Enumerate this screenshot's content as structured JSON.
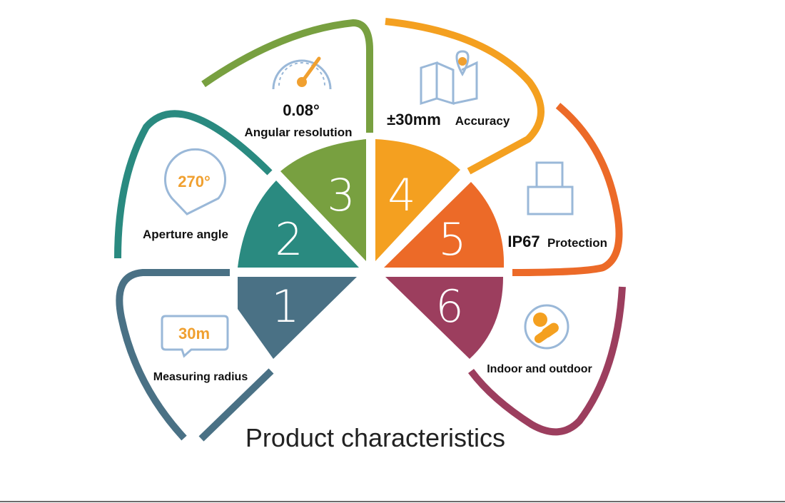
{
  "title": "Product characteristics",
  "colors": {
    "s1": "#4a7185",
    "s2": "#2a8a80",
    "s3": "#78a040",
    "s4": "#f4a020",
    "s5": "#ec6a28",
    "s6": "#9c3e5e",
    "icon_blue": "#9ab8d8",
    "icon_orange": "#f0a030"
  },
  "segments": [
    {
      "number": "1",
      "label": "Measuring radius",
      "value": "30m",
      "icon": "speech-bubble-icon"
    },
    {
      "number": "2",
      "label": "Aperture angle",
      "value": "270°",
      "icon": "aperture-angle-icon"
    },
    {
      "number": "3",
      "label": "Angular resolution",
      "value": "0.08°",
      "icon": "gauge-icon"
    },
    {
      "number": "4",
      "label": "Accuracy",
      "value": "±30mm",
      "icon": "map-pin-icon"
    },
    {
      "number": "5",
      "label": "Protection",
      "value": "IP67",
      "icon": "sensor-box-icon"
    },
    {
      "number": "6",
      "label": "Indoor and outdoor",
      "value": "",
      "icon": "pills-icon"
    }
  ]
}
